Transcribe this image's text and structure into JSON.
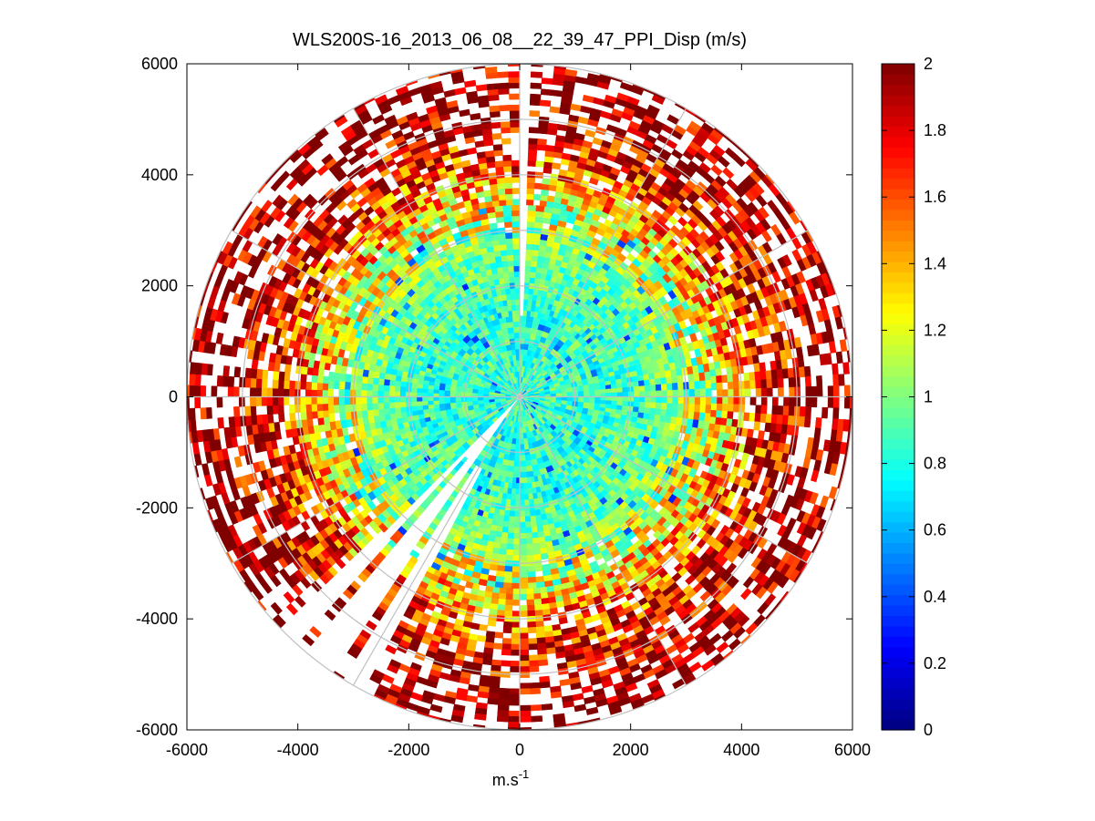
{
  "chart_data": {
    "type": "heatmap",
    "subtype": "polar-ppi",
    "title": "WLS200S-16_2013_06_08__22_39_47_PPI_Disp (m/s)",
    "xlabel": "m.s",
    "xlabel_superscript": "-1",
    "ylabel": "",
    "xlim": [
      -6000,
      6000
    ],
    "ylim": [
      -6000,
      6000
    ],
    "x_ticks": [
      -6000,
      -4000,
      -2000,
      0,
      2000,
      4000,
      6000
    ],
    "y_ticks": [
      -6000,
      -4000,
      -2000,
      0,
      2000,
      4000,
      6000
    ],
    "x_tick_labels": [
      "-6000",
      "-4000",
      "-2000",
      "0",
      "2000",
      "4000",
      "6000"
    ],
    "y_tick_labels": [
      "-6000",
      "-4000",
      "-2000",
      "0",
      "2000",
      "4000",
      "6000"
    ],
    "max_range": 6000,
    "range_rings": [
      1000,
      2000,
      3000,
      4000,
      5000,
      6000
    ],
    "spoke_interval_deg": 30,
    "colorbar": {
      "colormap": "jet",
      "range": [
        0,
        2
      ],
      "ticks": [
        0,
        0.2,
        0.4,
        0.6,
        0.8,
        1,
        1.2,
        1.4,
        1.6,
        1.8,
        2
      ],
      "tick_labels": [
        "0",
        "0.2",
        "0.4",
        "0.6",
        "0.8",
        "1",
        "1.2",
        "1.4",
        "1.6",
        "1.8",
        "2"
      ]
    },
    "approx_value_by_range": [
      {
        "range": 500,
        "value": 0.85
      },
      {
        "range": 1500,
        "value": 0.85
      },
      {
        "range": 2500,
        "value": 0.95
      },
      {
        "range": 3500,
        "value": 1.25
      },
      {
        "range": 4500,
        "value": 1.75
      },
      {
        "range": 5500,
        "value": 2.0
      }
    ],
    "data_gaps_azimuth_deg": [
      {
        "from": 0,
        "to": 2
      },
      {
        "from": 208,
        "to": 212
      },
      {
        "from": 214,
        "to": 221
      },
      {
        "from": 222,
        "to": 226
      }
    ]
  }
}
